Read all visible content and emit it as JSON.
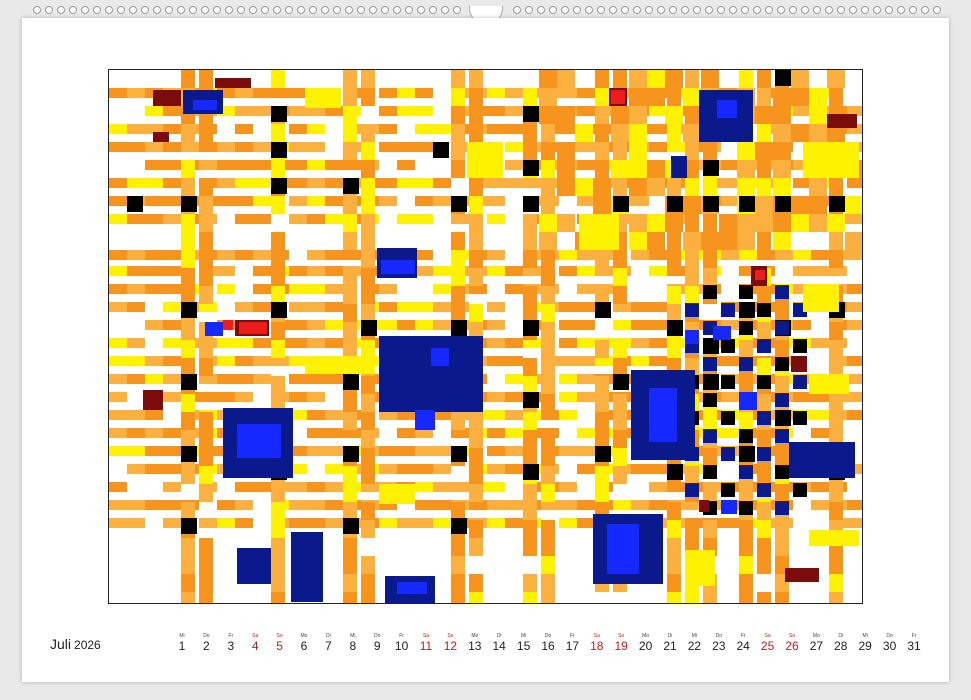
{
  "calendar": {
    "month": "Juli",
    "year": "2026",
    "days": [
      {
        "wd": "Mi",
        "num": "1",
        "weekend": false
      },
      {
        "wd": "Do",
        "num": "2",
        "weekend": false
      },
      {
        "wd": "Fr",
        "num": "3",
        "weekend": false
      },
      {
        "wd": "Sa",
        "num": "4",
        "weekend": true
      },
      {
        "wd": "So",
        "num": "5",
        "weekend": true
      },
      {
        "wd": "Mo",
        "num": "6",
        "weekend": false
      },
      {
        "wd": "Di",
        "num": "7",
        "weekend": false
      },
      {
        "wd": "Mi",
        "num": "8",
        "weekend": false
      },
      {
        "wd": "Do",
        "num": "9",
        "weekend": false
      },
      {
        "wd": "Fr",
        "num": "10",
        "weekend": false
      },
      {
        "wd": "Sa",
        "num": "11",
        "weekend": true
      },
      {
        "wd": "So",
        "num": "12",
        "weekend": true
      },
      {
        "wd": "Mo",
        "num": "13",
        "weekend": false
      },
      {
        "wd": "Di",
        "num": "14",
        "weekend": false
      },
      {
        "wd": "Mi",
        "num": "15",
        "weekend": false
      },
      {
        "wd": "Do",
        "num": "16",
        "weekend": false
      },
      {
        "wd": "Fr",
        "num": "17",
        "weekend": false
      },
      {
        "wd": "Sa",
        "num": "18",
        "weekend": true
      },
      {
        "wd": "So",
        "num": "19",
        "weekend": true
      },
      {
        "wd": "Mo",
        "num": "20",
        "weekend": false
      },
      {
        "wd": "Di",
        "num": "21",
        "weekend": false
      },
      {
        "wd": "Mi",
        "num": "22",
        "weekend": false
      },
      {
        "wd": "Do",
        "num": "23",
        "weekend": false
      },
      {
        "wd": "Fr",
        "num": "24",
        "weekend": false
      },
      {
        "wd": "Sa",
        "num": "25",
        "weekend": true
      },
      {
        "wd": "So",
        "num": "26",
        "weekend": true
      },
      {
        "wd": "Mo",
        "num": "27",
        "weekend": false
      },
      {
        "wd": "Di",
        "num": "28",
        "weekend": false
      },
      {
        "wd": "Mi",
        "num": "29",
        "weekend": false
      },
      {
        "wd": "Do",
        "num": "30",
        "weekend": false
      },
      {
        "wd": "Fr",
        "num": "31",
        "weekend": false
      }
    ]
  },
  "artwork": {
    "palette": {
      "orange": "#f7941d",
      "light_orange": "#fbb040",
      "yellow": "#fff200",
      "navy": "#0a1a8c",
      "blue": "#1428ff",
      "black": "#000000",
      "red": "#ee1c1c",
      "dark_red": "#7a0c0c",
      "white": "#ffffff"
    }
  }
}
